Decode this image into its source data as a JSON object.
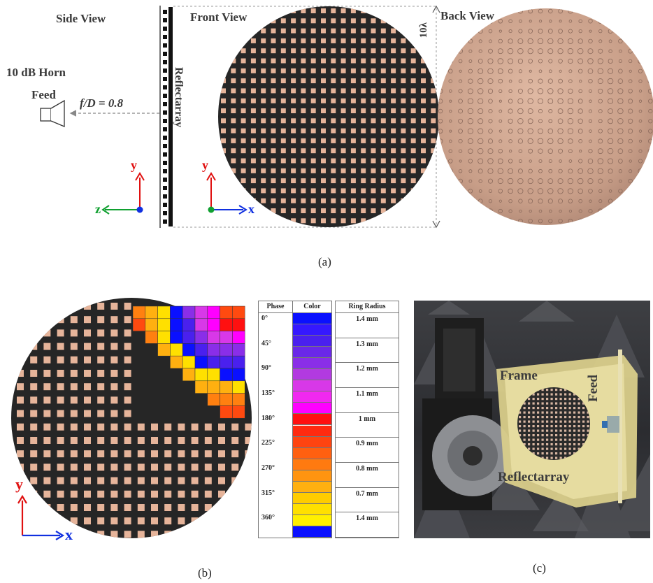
{
  "panel_a": {
    "side_view": "Side View",
    "front_view": "Front View",
    "back_view": "Back View",
    "horn": "10 dB Horn",
    "feed": "Feed",
    "f_over_d": "f/D = 0.8",
    "reflectarray": "Reflectarray",
    "dimension": "10λ",
    "axis_y": "y",
    "axis_z": "z",
    "axis_x": "x",
    "caption": "(a)"
  },
  "panel_b": {
    "axis_y": "y",
    "axis_x": "x",
    "caption": "(b)",
    "table": {
      "headers": [
        "Phase",
        "Color",
        "Ring Radius"
      ],
      "rows": [
        {
          "phase": "0°",
          "radius": "1.4 mm"
        },
        {
          "phase": "45°",
          "radius": "1.3 mm"
        },
        {
          "phase": "90°",
          "radius": "1.2 mm"
        },
        {
          "phase": "135°",
          "radius": "1.1 mm"
        },
        {
          "phase": "180°",
          "radius": "1 mm"
        },
        {
          "phase": "225°",
          "radius": "0.9 mm"
        },
        {
          "phase": "270°",
          "radius": "0.8 mm"
        },
        {
          "phase": "315°",
          "radius": "0.7 mm"
        },
        {
          "phase": "360°",
          "radius": "1.4 mm"
        }
      ],
      "colors": [
        "#0a10ff",
        "#3518ff",
        "#4a20ee",
        "#6a28e8",
        "#8a2ee8",
        "#b23ae0",
        "#d838e8",
        "#f028f0",
        "#ff00ff",
        "#ff1010",
        "#ff2a10",
        "#ff4410",
        "#ff6010",
        "#ff7a10",
        "#ff9410",
        "#ffb010",
        "#ffcc00",
        "#ffe000",
        "#fff000",
        "#0a10ff"
      ]
    }
  },
  "panel_c": {
    "frame": "Frame",
    "feed": "Feed",
    "reflectarray": "Reflectarray",
    "caption": "(c)"
  },
  "colors": {
    "board": "#262626",
    "patch": "#e6b49a",
    "copper": "#c89a80",
    "axis_red": "#e01010",
    "axis_blue": "#1030e0",
    "axis_green": "#10a030"
  }
}
